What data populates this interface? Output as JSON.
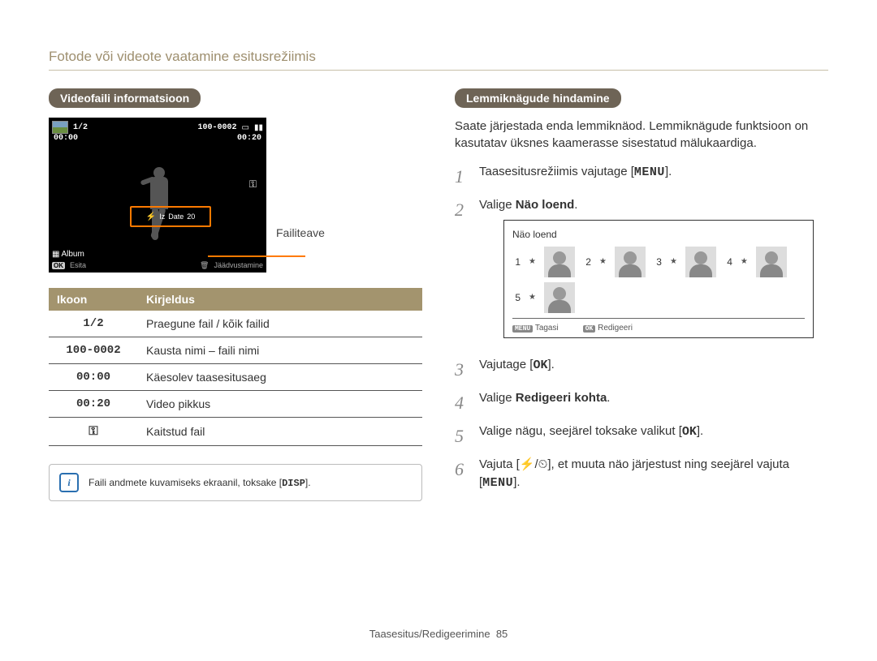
{
  "page_title": "Fotode või videote vaatamine esitusrežiimis",
  "left": {
    "heading": "Videofaili informatsioon",
    "camera": {
      "counter": "1/2",
      "file_id": "100-0002",
      "left_time": "00:00",
      "right_time": "00:20",
      "highlight_center": "Date",
      "highlight_right": "20",
      "album_label": "Album",
      "play_label": "Esita",
      "capture_label": "Jäädvustamine",
      "callout": "Failiteave"
    },
    "table": {
      "col1": "Ikoon",
      "col2": "Kirjeldus",
      "rows": [
        {
          "icon": "1/2",
          "desc": "Praegune fail / kõik failid"
        },
        {
          "icon": "100-0002",
          "desc": "Kausta nimi – faili nimi"
        },
        {
          "icon": "00:00",
          "desc": "Käesolev taasesitusaeg"
        },
        {
          "icon": "00:20",
          "desc": "Video pikkus"
        },
        {
          "icon": "KEY",
          "desc": "Kaitstud fail"
        }
      ]
    },
    "note_pre": "Faili andmete kuvamiseks ekraanil, toksake [",
    "note_disp": "DISP",
    "note_post": "]."
  },
  "right": {
    "heading": "Lemmiknägude hindamine",
    "intro": "Saate järjestada enda lemmiknäod. Lemmiknägude funktsioon on kasutatav üksnes kaamerasse sisestatud mälukaardiga.",
    "steps": {
      "s1_pre": "Taasesitusrežiimis vajutage [",
      "s1_menu": "MENU",
      "s1_post": "].",
      "s2_pre": "Valige ",
      "s2_bold": "Näo loend",
      "s2_post": ".",
      "s3_pre": "Vajutage [",
      "s3_ok": "OK",
      "s3_post": "].",
      "s4_pre": "Valige ",
      "s4_bold": "Redigeeri kohta",
      "s4_post": ".",
      "s5_pre": "Valige nägu, seejärel toksake valikut [",
      "s5_ok": "OK",
      "s5_post": "].",
      "s6_pre": "Vajuta [",
      "s6_flash": "⚡",
      "s6_sep": "/",
      "s6_timer": "⏲",
      "s6_mid": "], et muuta näo järjestust ning seejärel vajuta [",
      "s6_menu": "MENU",
      "s6_post": "]."
    },
    "face_screen": {
      "title": "Näo loend",
      "numbers": [
        "1",
        "2",
        "3",
        "4",
        "5"
      ],
      "back_badge": "MENU",
      "back_label": "Tagasi",
      "edit_badge": "OK",
      "edit_label": "Redigeeri"
    }
  },
  "footer": {
    "label": "Taasesitus/Redigeerimine",
    "page": "85"
  }
}
